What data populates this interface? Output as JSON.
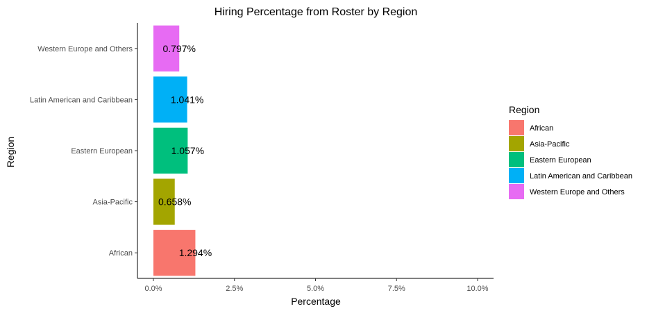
{
  "chart_data": {
    "type": "bar",
    "orientation": "horizontal",
    "title": "Hiring Percentage from Roster by Region",
    "xlabel": "Percentage",
    "ylabel": "Region",
    "categories": [
      "African",
      "Asia-Pacific",
      "Eastern European",
      "Latin American and Caribbean",
      "Western Europe and Others"
    ],
    "values": [
      1.294,
      0.658,
      1.057,
      1.041,
      0.797
    ],
    "value_labels": [
      "1.294%",
      "0.658%",
      "1.057%",
      "1.041%",
      "0.797%"
    ],
    "colors": [
      "#F8766D",
      "#A3A500",
      "#00BF7D",
      "#00B0F6",
      "#E76BF3"
    ],
    "xlim": [
      0,
      10
    ],
    "xticks": [
      0,
      2.5,
      5,
      7.5,
      10
    ],
    "xtick_labels": [
      "0.0%",
      "2.5%",
      "5.0%",
      "7.5%",
      "10.0%"
    ],
    "grid": false,
    "legend": {
      "title": "Region",
      "position": "right",
      "entries": [
        "African",
        "Asia-Pacific",
        "Eastern European",
        "Latin American and Caribbean",
        "Western Europe and Others"
      ]
    }
  }
}
